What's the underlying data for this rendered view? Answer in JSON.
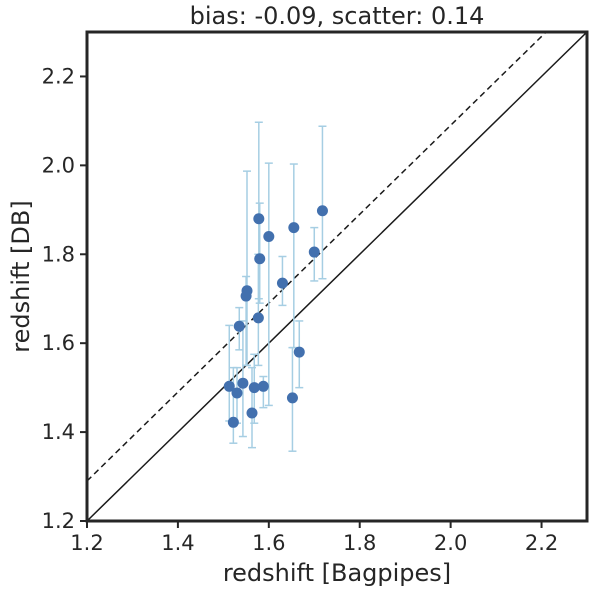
{
  "chart_data": {
    "type": "scatter",
    "title": "bias: -0.09, scatter: 0.14",
    "xlabel": "redshift [Bagpipes]",
    "ylabel": "redshift [DB]",
    "xlim": [
      1.2,
      2.3
    ],
    "ylim": [
      1.2,
      2.3
    ],
    "xticks": [
      "1.2",
      "1.4",
      "1.6",
      "1.8",
      "2.0",
      "2.2"
    ],
    "yticks": [
      "1.2",
      "1.4",
      "1.6",
      "1.8",
      "2.0",
      "2.2"
    ],
    "grid": false,
    "reference_lines": [
      {
        "style": "solid",
        "slope": 1,
        "intercept": 0
      },
      {
        "style": "dashed",
        "slope": 1,
        "intercept": 0.09
      }
    ],
    "marker_color": "#4270ae",
    "errorbar_color": "#a6cee3",
    "points": [
      {
        "x": 1.513,
        "y": 1.503,
        "ylo": 1.425,
        "yhi": 1.64
      },
      {
        "x": 1.522,
        "y": 1.422,
        "ylo": 1.375,
        "yhi": 1.545
      },
      {
        "x": 1.53,
        "y": 1.488,
        "ylo": 1.42,
        "yhi": 1.545
      },
      {
        "x": 1.535,
        "y": 1.638,
        "ylo": 1.585,
        "yhi": 1.68
      },
      {
        "x": 1.543,
        "y": 1.51,
        "ylo": 1.39,
        "yhi": 1.65
      },
      {
        "x": 1.55,
        "y": 1.706,
        "ylo": 1.55,
        "yhi": 1.75
      },
      {
        "x": 1.552,
        "y": 1.718,
        "ylo": 1.55,
        "yhi": 1.987
      },
      {
        "x": 1.563,
        "y": 1.443,
        "ylo": 1.365,
        "yhi": 1.545
      },
      {
        "x": 1.568,
        "y": 1.5,
        "ylo": 1.42,
        "yhi": 1.575
      },
      {
        "x": 1.577,
        "y": 1.657,
        "ylo": 1.55,
        "yhi": 1.8
      },
      {
        "x": 1.578,
        "y": 1.88,
        "ylo": 1.7,
        "yhi": 2.097
      },
      {
        "x": 1.58,
        "y": 1.79,
        "ylo": 1.69,
        "yhi": 1.915
      },
      {
        "x": 1.588,
        "y": 1.503,
        "ylo": 1.455,
        "yhi": 1.525
      },
      {
        "x": 1.6,
        "y": 1.84,
        "ylo": 1.46,
        "yhi": 2.005
      },
      {
        "x": 1.63,
        "y": 1.735,
        "ylo": 1.685,
        "yhi": 1.795
      },
      {
        "x": 1.652,
        "y": 1.477,
        "ylo": 1.357,
        "yhi": 1.59
      },
      {
        "x": 1.655,
        "y": 1.86,
        "ylo": 1.59,
        "yhi": 2.003
      },
      {
        "x": 1.667,
        "y": 1.58,
        "ylo": 1.5,
        "yhi": 1.65
      },
      {
        "x": 1.7,
        "y": 1.805,
        "ylo": 1.74,
        "yhi": 1.86
      },
      {
        "x": 1.718,
        "y": 1.898,
        "ylo": 1.745,
        "yhi": 2.088
      }
    ]
  }
}
